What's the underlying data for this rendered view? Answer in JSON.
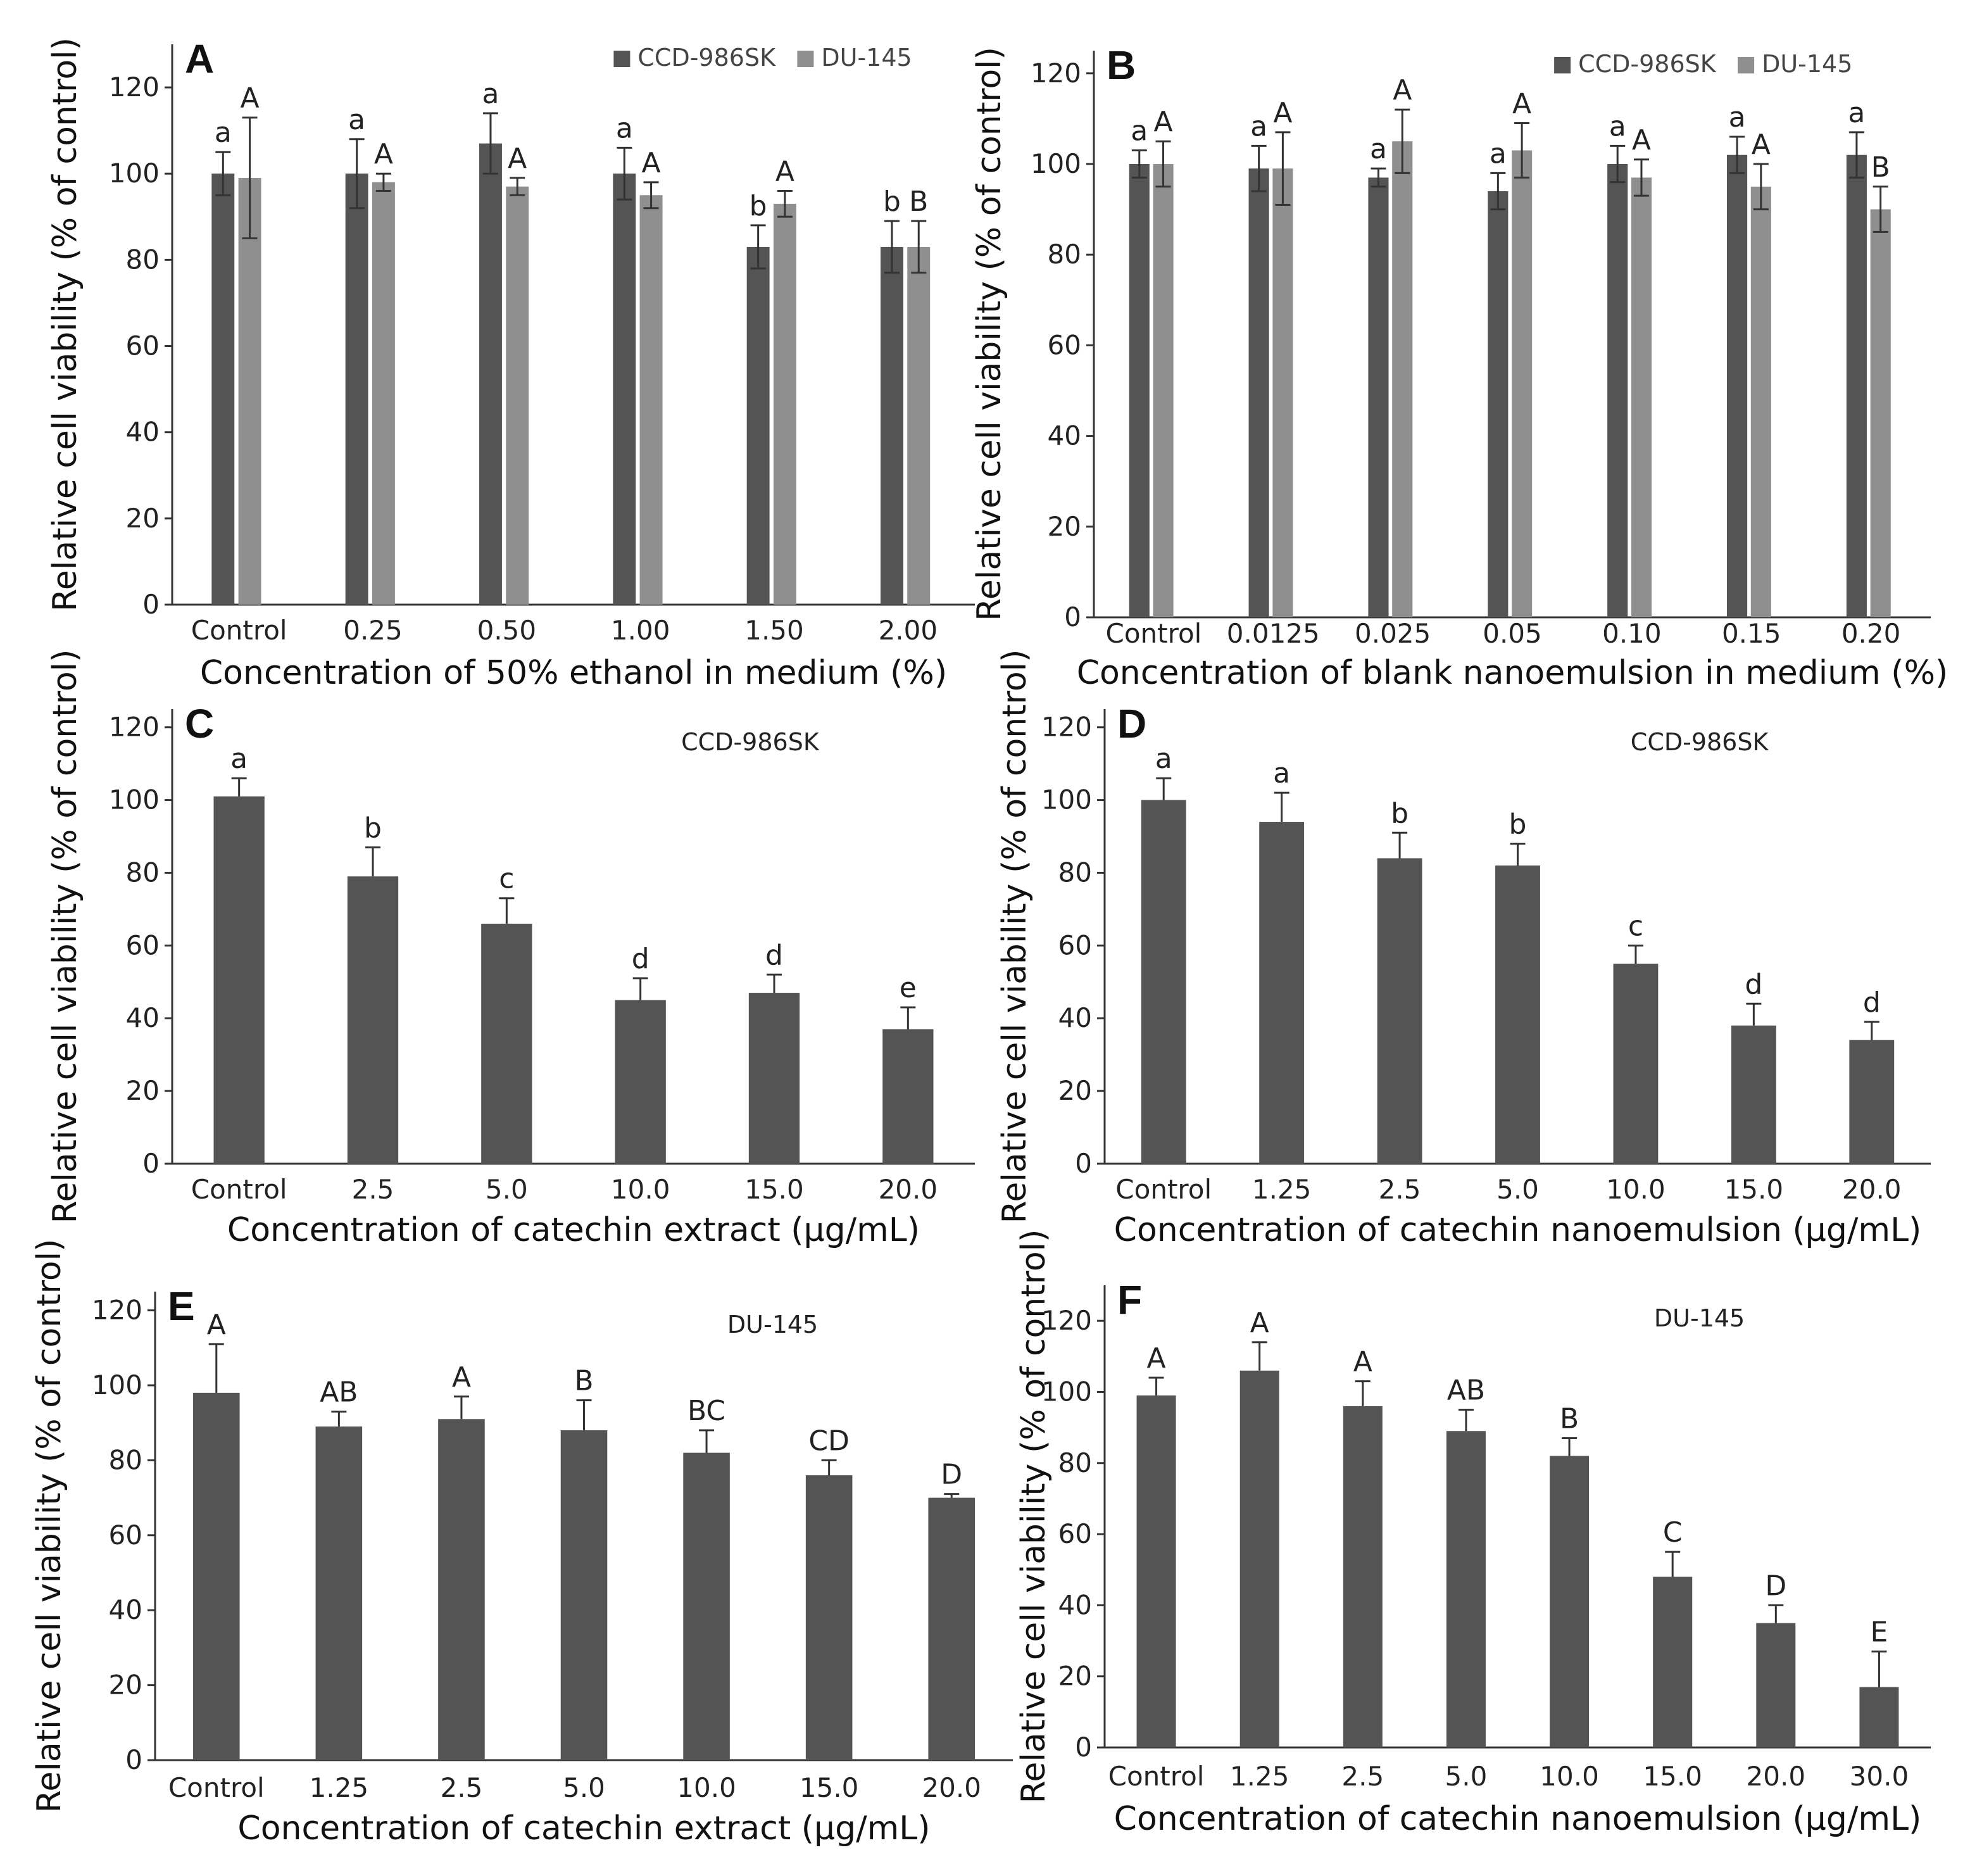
{
  "chart_data": [
    {
      "panel": "A",
      "type": "bar",
      "title": "",
      "xlabel": "Concentration of 50% ethanol in medium (%)",
      "ylabel": "Relative cell viability (% of control)",
      "ylim": [
        0,
        130
      ],
      "yticks": [
        0,
        20,
        40,
        60,
        80,
        100,
        120
      ],
      "categories": [
        "Control",
        "0.25",
        "0.50",
        "1.00",
        "1.50",
        "2.00"
      ],
      "legend": [
        "CCD-986SK",
        "DU-145"
      ],
      "series": [
        {
          "name": "CCD-986SK",
          "color": "#545454",
          "values": [
            100,
            100,
            107,
            100,
            83,
            83
          ],
          "errors": [
            5,
            8,
            7,
            6,
            5,
            6
          ],
          "letters": [
            "a",
            "a",
            "a",
            "a",
            "b",
            "b"
          ]
        },
        {
          "name": "DU-145",
          "color": "#8f8f8f",
          "values": [
            99,
            98,
            97,
            95,
            93,
            83
          ],
          "errors": [
            14,
            2,
            2,
            3,
            3,
            6
          ],
          "letters": [
            "A",
            "A",
            "A",
            "A",
            "A",
            "B"
          ]
        }
      ]
    },
    {
      "panel": "B",
      "type": "bar",
      "title": "",
      "xlabel": "Concentration of blank nanoemulsion in medium (%)",
      "ylabel": "Relative cell viability (% of control)",
      "ylim": [
        0,
        125
      ],
      "yticks": [
        0,
        20,
        40,
        60,
        80,
        100,
        120
      ],
      "categories": [
        "Control",
        "0.0125",
        "0.025",
        "0.05",
        "0.10",
        "0.15",
        "0.20"
      ],
      "legend": [
        "CCD-986SK",
        "DU-145"
      ],
      "series": [
        {
          "name": "CCD-986SK",
          "color": "#545454",
          "values": [
            100,
            99,
            97,
            94,
            100,
            102,
            102
          ],
          "errors": [
            3,
            5,
            2,
            4,
            4,
            4,
            5
          ],
          "letters": [
            "a",
            "a",
            "a",
            "a",
            "a",
            "a",
            "a"
          ]
        },
        {
          "name": "DU-145",
          "color": "#8f8f8f",
          "values": [
            100,
            99,
            105,
            103,
            97,
            95,
            90
          ],
          "errors": [
            5,
            8,
            7,
            6,
            4,
            5,
            5
          ],
          "letters": [
            "A",
            "A",
            "A",
            "A",
            "A",
            "A",
            "B"
          ]
        }
      ]
    },
    {
      "panel": "C",
      "type": "bar",
      "title": "CCD-986SK",
      "xlabel": "Concentration of catechin extract (μg/mL)",
      "ylabel": "Relative cell viability (% of control)",
      "ylim": [
        0,
        125
      ],
      "yticks": [
        0,
        20,
        40,
        60,
        80,
        100,
        120
      ],
      "categories": [
        "Control",
        "2.5",
        "5.0",
        "10.0",
        "15.0",
        "20.0"
      ],
      "series": [
        {
          "name": "CCD-986SK",
          "color": "#545454",
          "values": [
            101,
            79,
            66,
            45,
            47,
            37
          ],
          "errors": [
            5,
            8,
            7,
            6,
            5,
            6
          ],
          "letters": [
            "a",
            "b",
            "c",
            "d",
            "d",
            "e"
          ]
        }
      ]
    },
    {
      "panel": "D",
      "type": "bar",
      "title": "CCD-986SK",
      "xlabel": "Concentration of catechin nanoemulsion (μg/mL)",
      "ylabel": "Relative cell viability (% of control)",
      "ylim": [
        0,
        125
      ],
      "yticks": [
        0,
        20,
        40,
        60,
        80,
        100,
        120
      ],
      "categories": [
        "Control",
        "1.25",
        "2.5",
        "5.0",
        "10.0",
        "15.0",
        "20.0"
      ],
      "series": [
        {
          "name": "CCD-986SK",
          "color": "#545454",
          "values": [
            100,
            94,
            84,
            82,
            55,
            38,
            34
          ],
          "errors": [
            6,
            8,
            7,
            6,
            5,
            6,
            5
          ],
          "letters": [
            "a",
            "a",
            "b",
            "b",
            "c",
            "d",
            "d"
          ]
        }
      ]
    },
    {
      "panel": "E",
      "type": "bar",
      "title": "DU-145",
      "xlabel": "Concentration of catechin extract (μg/mL)",
      "ylabel": "Relative cell viability (% of control)",
      "ylim": [
        0,
        125
      ],
      "yticks": [
        0,
        20,
        40,
        60,
        80,
        100,
        120
      ],
      "categories": [
        "Control",
        "1.25",
        "2.5",
        "5.0",
        "10.0",
        "15.0",
        "20.0"
      ],
      "series": [
        {
          "name": "DU-145",
          "color": "#545454",
          "values": [
            98,
            89,
            91,
            88,
            82,
            76,
            70
          ],
          "errors": [
            13,
            4,
            6,
            8,
            6,
            4,
            1
          ],
          "letters": [
            "A",
            "AB",
            "A",
            "B",
            "BC",
            "CD",
            "D"
          ]
        }
      ]
    },
    {
      "panel": "F",
      "type": "bar",
      "title": "DU-145",
      "xlabel": "Concentration of catechin nanoemulsion (μg/mL)",
      "ylabel": "Relative cell viability (% of control)",
      "ylim": [
        0,
        130
      ],
      "yticks": [
        0,
        20,
        40,
        60,
        80,
        100,
        120
      ],
      "categories": [
        "Control",
        "1.25",
        "2.5",
        "5.0",
        "10.0",
        "15.0",
        "20.0",
        "30.0"
      ],
      "series": [
        {
          "name": "DU-145",
          "color": "#545454",
          "values": [
            99,
            106,
            96,
            89,
            82,
            48,
            35,
            17
          ],
          "errors": [
            5,
            8,
            7,
            6,
            5,
            7,
            5,
            10
          ],
          "letters": [
            "A",
            "A",
            "A",
            "AB",
            "B",
            "C",
            "D",
            "E"
          ]
        }
      ]
    }
  ]
}
